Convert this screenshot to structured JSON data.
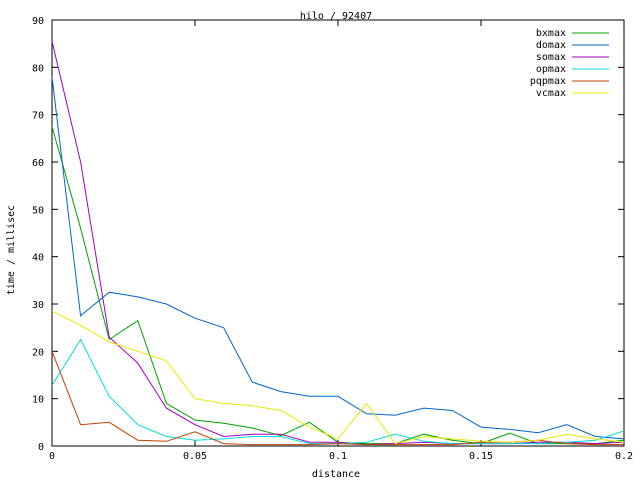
{
  "chart_data": {
    "type": "line",
    "title": "hilo / 92407",
    "xlabel": "distance",
    "ylabel": "time / millisec",
    "xlim": [
      0,
      0.2
    ],
    "ylim": [
      0,
      90
    ],
    "grid": false,
    "legend_position": "top-right",
    "x_ticks": [
      "0",
      "0.05",
      "0.1",
      "0.15",
      "0.2"
    ],
    "y_ticks": [
      "0",
      "10",
      "20",
      "30",
      "40",
      "50",
      "60",
      "70",
      "80",
      "90"
    ],
    "x": [
      0,
      0.01,
      0.02,
      0.03,
      0.04,
      0.05,
      0.06,
      0.07,
      0.08,
      0.09,
      0.1,
      0.11,
      0.12,
      0.13,
      0.14,
      0.15,
      0.16,
      0.17,
      0.18,
      0.19,
      0.2
    ],
    "series": [
      {
        "name": "bxmax",
        "color": "#00a000",
        "values": [
          67.5,
          46,
          22.5,
          26.5,
          9,
          5.5,
          4.8,
          3.8,
          2.2,
          5,
          0.8,
          0.5,
          0.5,
          2.5,
          1.2,
          0.5,
          2.7,
          0.5,
          0.5,
          0.5,
          1.2
        ]
      },
      {
        "name": "domax",
        "color": "#0066cc",
        "values": [
          78,
          27.5,
          32.5,
          31.5,
          30,
          27,
          25,
          13.5,
          11.5,
          10.5,
          10.5,
          6.8,
          6.5,
          8,
          7.5,
          4,
          3.5,
          2.8,
          4.5,
          2,
          1.5
        ]
      },
      {
        "name": "somax",
        "color": "#a000c0",
        "values": [
          85.5,
          60,
          23,
          17.5,
          8,
          4.5,
          2,
          2.5,
          2.5,
          0.8,
          0.8,
          0.3,
          0.5,
          0.8,
          0.5,
          0.5,
          0.5,
          0.8,
          0.8,
          0.5,
          0.8
        ]
      },
      {
        "name": "opmax",
        "color": "#00dddd",
        "values": [
          12.8,
          22.5,
          10.5,
          4.5,
          2,
          1.2,
          1.5,
          2,
          2,
          0.5,
          0.5,
          0.8,
          2.5,
          1,
          0.5,
          0.5,
          0.5,
          0.5,
          0.8,
          1.2,
          3.2
        ]
      },
      {
        "name": "pqpmax",
        "color": "#c04000",
        "values": [
          20,
          4.5,
          5,
          1.2,
          1,
          3,
          0.5,
          0.3,
          0.3,
          0.3,
          0.5,
          0.3,
          0.3,
          0.3,
          0.3,
          0.8,
          0.8,
          1.2,
          0.5,
          0.3,
          0.3
        ]
      },
      {
        "name": "vcmax",
        "color": "#e8e800",
        "values": [
          28.5,
          25.5,
          22,
          20,
          18,
          10,
          9,
          8.5,
          7.5,
          4,
          1.5,
          9,
          0.5,
          2,
          1.5,
          1,
          0.8,
          1.2,
          2.5,
          1.5,
          0.8
        ]
      }
    ]
  }
}
